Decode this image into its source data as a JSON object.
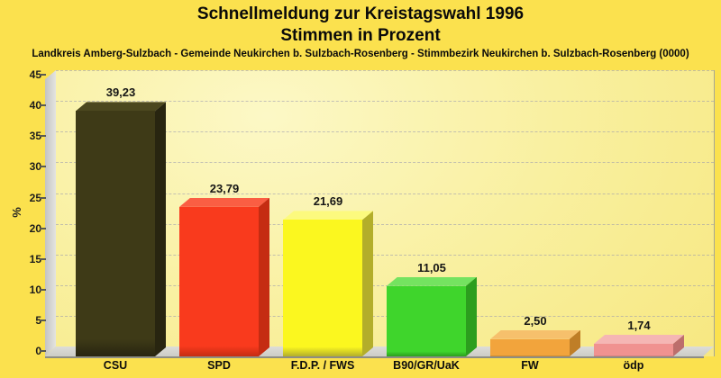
{
  "header": {
    "title_line1": "Schnellmeldung zur Kreistagswahl 1996",
    "title_line2": "Stimmen in Prozent",
    "scope_line": "Landkreis Amberg-Sulzbach - Gemeinde Neukirchen b. Sulzbach-Rosenberg - Stimmbezirk Neukirchen b. Sulzbach-Rosenberg (0000)"
  },
  "chart_data": {
    "type": "bar",
    "style": "3d-bars",
    "title": "Schnellmeldung zur Kreistagswahl 1996",
    "subtitle": "Stimmen in Prozent",
    "scope": "Landkreis Amberg-Sulzbach - Gemeinde Neukirchen b. Sulzbach-Rosenberg - Stimmbezirk Neukirchen b. Sulzbach-Rosenberg (0000)",
    "xlabel": "",
    "ylabel": "%",
    "ylim": [
      0,
      45
    ],
    "ytick_step": 5,
    "grid": "horizontal-dashed",
    "legend": "none",
    "categories": [
      "CSU",
      "SPD",
      "F.D.P. / FWS",
      "B90/GR/UaK",
      "FW",
      "ödp"
    ],
    "values": [
      39.23,
      23.79,
      21.69,
      11.05,
      2.5,
      1.74
    ],
    "value_labels": [
      "39,23",
      "23,79",
      "21,69",
      "11,05",
      "2,50",
      "1,74"
    ],
    "bar_colors": [
      {
        "front": "#3E3A17",
        "side": "#282510",
        "top": "#4C481F"
      },
      {
        "front": "#F93A1D",
        "side": "#C52C12",
        "top": "#FA5E43"
      },
      {
        "front": "#FBF71F",
        "side": "#B3AE2A",
        "top": "#FCFA7E"
      },
      {
        "front": "#3FD52C",
        "side": "#2C9E1E",
        "top": "#74E360"
      },
      {
        "front": "#F2A43C",
        "side": "#BF7E27",
        "top": "#F6C06C"
      },
      {
        "front": "#F09290",
        "side": "#BC6E6C",
        "top": "#F5B6B4"
      }
    ]
  },
  "colors": {
    "page_background": "#FBE14E",
    "plot_background_light": "#FCF8C6",
    "plot_background_dark": "#F7E882",
    "wall_gray": "#D8D8D6",
    "gridline": "#9696AF",
    "text": "#0a0a0a"
  }
}
